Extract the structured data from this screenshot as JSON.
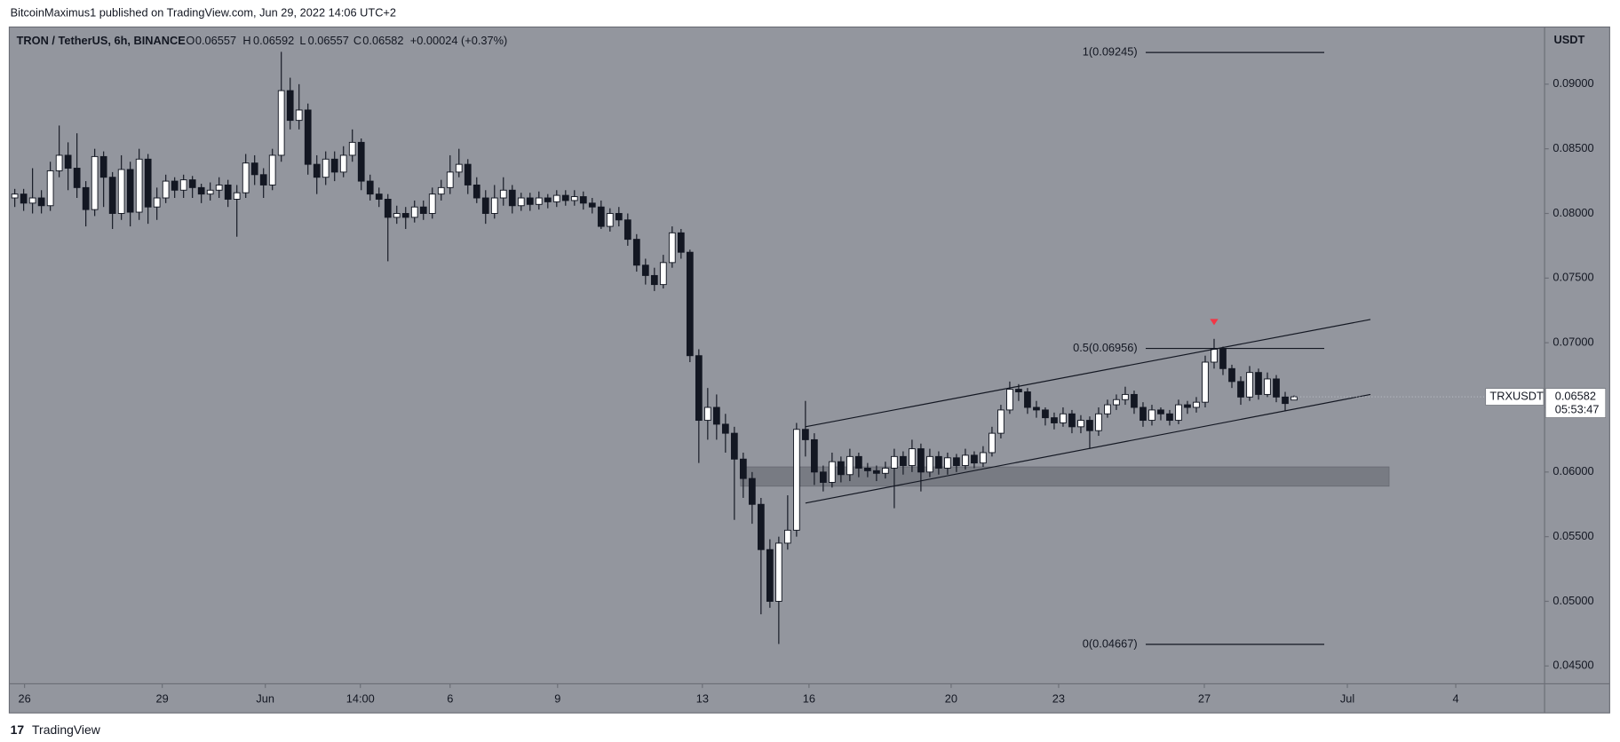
{
  "chart_data": {
    "type": "candlestick",
    "attribution": "BitcoinMaximus1 published on TradingView.com, Jun 29, 2022 14:06 UTC+2",
    "title": "TRON / TetherUS, 6h, BINANCE",
    "ohlc_labels": [
      "O",
      "H",
      "L",
      "C"
    ],
    "change": "+0.00024 (+0.37%)",
    "y_axis_label": "USDT",
    "symbol_label": "TRXUSDT",
    "countdown": "05:53:47",
    "branding": "TradingView",
    "up_color": "#ffffff",
    "down_color": "#131722",
    "grid": false,
    "x": [
      0,
      1,
      2,
      3,
      4,
      5,
      6,
      7,
      8,
      9,
      10,
      11,
      12,
      13,
      14,
      15,
      16,
      17,
      18,
      19,
      20,
      21,
      22,
      23,
      24,
      25,
      26,
      27,
      28,
      29,
      30,
      31,
      32,
      33,
      34,
      35,
      36,
      37,
      38,
      39,
      40,
      41,
      42,
      43,
      44,
      45,
      46,
      47,
      48,
      49,
      50,
      51,
      52,
      53,
      54,
      55,
      56,
      57,
      58,
      59,
      60,
      61,
      62,
      63,
      64,
      65,
      66,
      67,
      68,
      69,
      70,
      71,
      72,
      73,
      74,
      75,
      76,
      77,
      78,
      79,
      80,
      81,
      82,
      83,
      84,
      85,
      86,
      87,
      88,
      89,
      90,
      91,
      92,
      93,
      94,
      95,
      96,
      97,
      98,
      99,
      100,
      101,
      102,
      103,
      104,
      105,
      106,
      107,
      108,
      109,
      110,
      111,
      112,
      113,
      114,
      115,
      116,
      117,
      118,
      119,
      120,
      121,
      122,
      123,
      124,
      125,
      126,
      127,
      128,
      129,
      130,
      131,
      132,
      133,
      134,
      135,
      136,
      137,
      138,
      139,
      140,
      141,
      142,
      143,
      144
    ],
    "open": [
      0.0812,
      0.0815,
      0.0808,
      0.0812,
      0.0806,
      0.0833,
      0.0845,
      0.0835,
      0.082,
      0.0803,
      0.0844,
      0.0828,
      0.08,
      0.0834,
      0.0801,
      0.0842,
      0.0805,
      0.0812,
      0.0825,
      0.0818,
      0.0826,
      0.082,
      0.0815,
      0.0818,
      0.0822,
      0.0811,
      0.0816,
      0.0839,
      0.083,
      0.0822,
      0.0845,
      0.0895,
      0.0872,
      0.088,
      0.0838,
      0.0828,
      0.0842,
      0.0832,
      0.0845,
      0.0855,
      0.0825,
      0.0815,
      0.0811,
      0.0797,
      0.08,
      0.0797,
      0.0805,
      0.08,
      0.0815,
      0.082,
      0.0832,
      0.0838,
      0.0822,
      0.0812,
      0.08,
      0.0812,
      0.0818,
      0.0806,
      0.0812,
      0.0807,
      0.0812,
      0.0809,
      0.0814,
      0.081,
      0.0813,
      0.0808,
      0.0805,
      0.079,
      0.08,
      0.0795,
      0.078,
      0.076,
      0.0752,
      0.0745,
      0.0762,
      0.0785,
      0.077,
      0.069,
      0.064,
      0.065,
      0.0637,
      0.063,
      0.061,
      0.0595,
      0.0575,
      0.054,
      0.05,
      0.0545,
      0.0555,
      0.0633,
      0.0625,
      0.06,
      0.0592,
      0.0608,
      0.0598,
      0.0612,
      0.0603,
      0.0601,
      0.0599,
      0.0603,
      0.0612,
      0.0605,
      0.0618,
      0.06,
      0.0612,
      0.0603,
      0.0611,
      0.0605,
      0.0613,
      0.0607,
      0.0615,
      0.063,
      0.0648,
      0.0664,
      0.0662,
      0.065,
      0.0648,
      0.0642,
      0.0638,
      0.0645,
      0.0635,
      0.064,
      0.0632,
      0.0645,
      0.0652,
      0.0656,
      0.066,
      0.065,
      0.064,
      0.0648,
      0.0645,
      0.064,
      0.0652,
      0.065,
      0.0654,
      0.0685,
      0.0695,
      0.068,
      0.067,
      0.0658,
      0.0677,
      0.066,
      0.0672,
      0.0658,
      0.06557
    ],
    "high": [
      0.0819,
      0.0819,
      0.0835,
      0.0818,
      0.084,
      0.0868,
      0.0855,
      0.0862,
      0.0825,
      0.085,
      0.0848,
      0.0832,
      0.0845,
      0.084,
      0.085,
      0.0846,
      0.082,
      0.083,
      0.0828,
      0.083,
      0.0829,
      0.0823,
      0.0824,
      0.0828,
      0.0826,
      0.0822,
      0.0846,
      0.0845,
      0.0835,
      0.085,
      0.0925,
      0.0905,
      0.09,
      0.0885,
      0.0845,
      0.0848,
      0.0848,
      0.0852,
      0.0865,
      0.0858,
      0.083,
      0.082,
      0.0815,
      0.0806,
      0.0805,
      0.081,
      0.081,
      0.082,
      0.0826,
      0.0845,
      0.085,
      0.0842,
      0.0828,
      0.0818,
      0.0822,
      0.0828,
      0.0822,
      0.0816,
      0.0816,
      0.0817,
      0.0815,
      0.0818,
      0.0818,
      0.0818,
      0.0817,
      0.0812,
      0.081,
      0.0804,
      0.0805,
      0.08,
      0.0784,
      0.0765,
      0.0758,
      0.0768,
      0.079,
      0.0788,
      0.0772,
      0.0695,
      0.0665,
      0.066,
      0.0645,
      0.0635,
      0.0615,
      0.06,
      0.058,
      0.0548,
      0.055,
      0.0582,
      0.0638,
      0.0655,
      0.063,
      0.0605,
      0.0615,
      0.0612,
      0.0618,
      0.0615,
      0.0607,
      0.0605,
      0.0608,
      0.0618,
      0.0616,
      0.0625,
      0.0622,
      0.0618,
      0.0616,
      0.0615,
      0.0614,
      0.0618,
      0.0616,
      0.062,
      0.0635,
      0.0652,
      0.067,
      0.0668,
      0.0665,
      0.0655,
      0.065,
      0.0646,
      0.065,
      0.0648,
      0.0644,
      0.0643,
      0.065,
      0.0656,
      0.066,
      0.0666,
      0.0663,
      0.0654,
      0.0652,
      0.065,
      0.0648,
      0.0656,
      0.0655,
      0.0658,
      0.069,
      0.0703,
      0.0697,
      0.0683,
      0.0674,
      0.0682,
      0.068,
      0.0677,
      0.0675,
      0.0662,
      0.06592
    ],
    "low": [
      0.0805,
      0.0802,
      0.08,
      0.08,
      0.0802,
      0.0828,
      0.0818,
      0.0812,
      0.079,
      0.0798,
      0.0805,
      0.0788,
      0.0795,
      0.079,
      0.0795,
      0.0792,
      0.0795,
      0.0808,
      0.0812,
      0.0812,
      0.0812,
      0.0808,
      0.081,
      0.0812,
      0.0805,
      0.0782,
      0.0812,
      0.0822,
      0.0812,
      0.0818,
      0.084,
      0.0865,
      0.0865,
      0.083,
      0.0815,
      0.0822,
      0.0825,
      0.0828,
      0.084,
      0.0818,
      0.081,
      0.0805,
      0.0763,
      0.0792,
      0.0788,
      0.0793,
      0.0795,
      0.0796,
      0.081,
      0.0815,
      0.0828,
      0.0815,
      0.0808,
      0.0792,
      0.0796,
      0.0806,
      0.08,
      0.0802,
      0.0802,
      0.0803,
      0.0804,
      0.0805,
      0.0806,
      0.0806,
      0.0803,
      0.08,
      0.0788,
      0.0786,
      0.079,
      0.0775,
      0.0755,
      0.0745,
      0.074,
      0.0742,
      0.0758,
      0.0765,
      0.0685,
      0.0607,
      0.0625,
      0.0625,
      0.0615,
      0.0563,
      0.058,
      0.056,
      0.049,
      0.0495,
      0.0467,
      0.054,
      0.055,
      0.0612,
      0.059,
      0.0585,
      0.0588,
      0.0592,
      0.0593,
      0.0596,
      0.0596,
      0.0593,
      0.0595,
      0.0572,
      0.0598,
      0.06,
      0.0585,
      0.0596,
      0.0598,
      0.0598,
      0.06,
      0.0602,
      0.0603,
      0.0604,
      0.0612,
      0.0626,
      0.0645,
      0.0655,
      0.0645,
      0.0642,
      0.0636,
      0.0633,
      0.0635,
      0.063,
      0.063,
      0.0618,
      0.0628,
      0.0642,
      0.0648,
      0.0652,
      0.0645,
      0.0635,
      0.0636,
      0.064,
      0.0636,
      0.0637,
      0.0645,
      0.0646,
      0.065,
      0.068,
      0.0675,
      0.0665,
      0.0652,
      0.0655,
      0.0656,
      0.0658,
      0.0654,
      0.0647,
      0.06557
    ],
    "close": [
      0.0815,
      0.0808,
      0.0812,
      0.0806,
      0.0833,
      0.0845,
      0.0835,
      0.082,
      0.0803,
      0.0844,
      0.0828,
      0.08,
      0.0834,
      0.0801,
      0.0842,
      0.0805,
      0.0812,
      0.0825,
      0.0818,
      0.0826,
      0.082,
      0.0815,
      0.0818,
      0.0822,
      0.0811,
      0.0816,
      0.0839,
      0.083,
      0.0822,
      0.0845,
      0.0895,
      0.0872,
      0.088,
      0.0838,
      0.0828,
      0.0842,
      0.0832,
      0.0845,
      0.0855,
      0.0825,
      0.0815,
      0.0811,
      0.0797,
      0.08,
      0.0797,
      0.0805,
      0.08,
      0.0815,
      0.082,
      0.0832,
      0.0838,
      0.0822,
      0.0812,
      0.08,
      0.0812,
      0.0818,
      0.0806,
      0.0812,
      0.0807,
      0.0812,
      0.0809,
      0.0814,
      0.081,
      0.0813,
      0.0808,
      0.0805,
      0.079,
      0.08,
      0.0795,
      0.078,
      0.076,
      0.0752,
      0.0745,
      0.0762,
      0.0785,
      0.077,
      0.069,
      0.064,
      0.065,
      0.0637,
      0.063,
      0.061,
      0.0595,
      0.0575,
      0.054,
      0.05,
      0.0545,
      0.0555,
      0.0633,
      0.0625,
      0.06,
      0.0592,
      0.0608,
      0.0598,
      0.0612,
      0.0603,
      0.0601,
      0.0599,
      0.0603,
      0.0612,
      0.0605,
      0.0618,
      0.06,
      0.0612,
      0.0603,
      0.0611,
      0.0605,
      0.0613,
      0.0607,
      0.0615,
      0.063,
      0.0648,
      0.0664,
      0.0662,
      0.065,
      0.0648,
      0.0642,
      0.0638,
      0.0645,
      0.0635,
      0.064,
      0.0632,
      0.0645,
      0.0652,
      0.0656,
      0.066,
      0.065,
      0.064,
      0.0648,
      0.0645,
      0.064,
      0.0652,
      0.065,
      0.0654,
      0.0685,
      0.0695,
      0.068,
      0.067,
      0.0658,
      0.0677,
      0.066,
      0.0672,
      0.0658,
      0.0653,
      0.06582
    ],
    "xlim": [
      -0.5,
      172.2
    ],
    "ylim": [
      0.04362,
      0.09442
    ],
    "xticks": [
      {
        "value": 1.1,
        "label": "26"
      },
      {
        "value": 16.6,
        "label": "29"
      },
      {
        "value": 28.2,
        "label": "Jun"
      },
      {
        "value": 38.9,
        "label": "14:00"
      },
      {
        "value": 49.0,
        "label": "6"
      },
      {
        "value": 61.1,
        "label": "9"
      },
      {
        "value": 77.4,
        "label": "13"
      },
      {
        "value": 89.4,
        "label": "16"
      },
      {
        "value": 105.4,
        "label": "20"
      },
      {
        "value": 117.5,
        "label": "23"
      },
      {
        "value": 133.9,
        "label": "27"
      },
      {
        "value": 150.0,
        "label": "Jul"
      },
      {
        "value": 162.2,
        "label": "4"
      }
    ],
    "yticks": [
      {
        "value": 0.045,
        "label": "0.04500"
      },
      {
        "value": 0.05,
        "label": "0.05000"
      },
      {
        "value": 0.055,
        "label": "0.05500"
      },
      {
        "value": 0.06,
        "label": "0.06000"
      },
      {
        "value": 0.065,
        "label": "0.06500"
      },
      {
        "value": 0.07,
        "label": "0.07000"
      },
      {
        "value": 0.075,
        "label": "0.07500"
      },
      {
        "value": 0.08,
        "label": "0.08000"
      },
      {
        "value": 0.085,
        "label": "0.08500"
      },
      {
        "value": 0.09,
        "label": "0.09000"
      }
    ],
    "fib_levels": [
      {
        "value": 0.09245,
        "label": "1(0.09245)"
      },
      {
        "value": 0.06956,
        "label": "0.5(0.06956)"
      },
      {
        "value": 0.04667,
        "label": "0(0.04667)"
      }
    ],
    "fib_x": [
      127.3,
      147.4
    ],
    "trendlines": [
      {
        "x": [
          89.0,
          152.6
        ],
        "y": [
          0.0635,
          0.0718
        ]
      },
      {
        "x": [
          89.0,
          152.6
        ],
        "y": [
          0.0576,
          0.066
        ]
      }
    ],
    "zone": {
      "x": [
        81.7,
        154.7
      ],
      "y": [
        0.0589,
        0.0604
      ],
      "color": "#6f727a"
    },
    "signal_marker": {
      "x": 135,
      "y": 0.0716,
      "color": "#f23645"
    }
  }
}
